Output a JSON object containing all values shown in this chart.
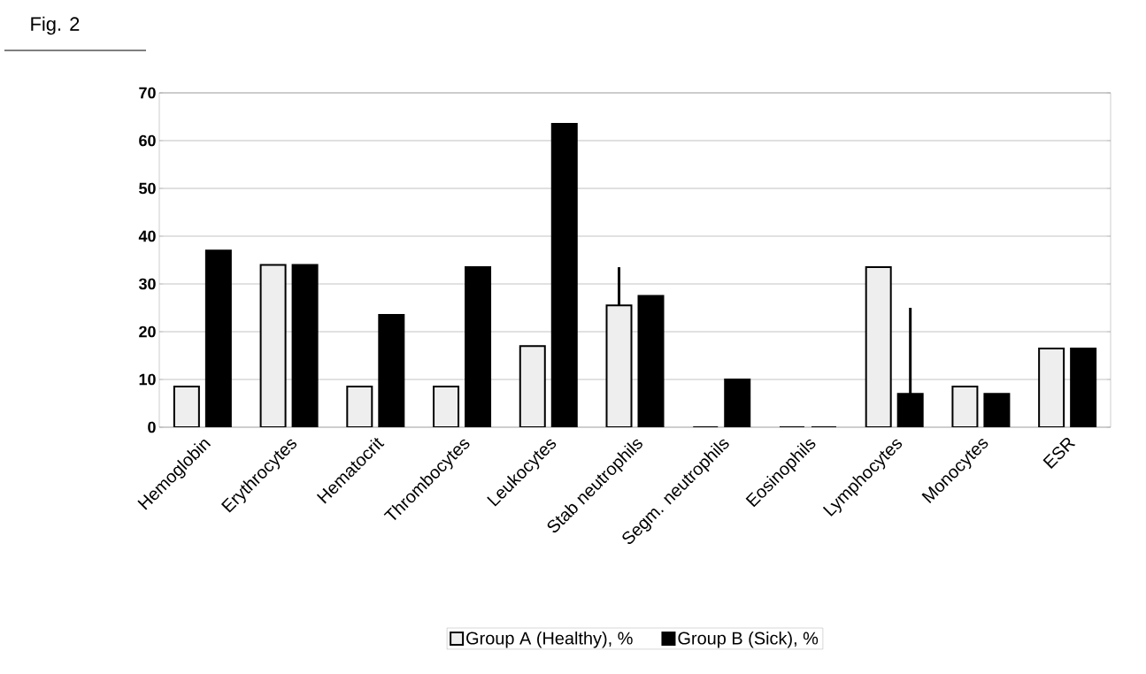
{
  "chart_data": {
    "type": "bar",
    "title": "Fig. 2",
    "categories": [
      "Hemoglobin",
      "Erythrocytes",
      "Hematocrit",
      "Thrombocytes",
      "Leukocytes",
      "Stab neutrophils",
      "Segm. neutrophils",
      "Eosinophils",
      "Lymphocytes",
      "Monocytes",
      "ESR"
    ],
    "series": [
      {
        "name": "Group A (Healthy), %",
        "color": "#eeeeee",
        "values": [
          8.5,
          34,
          8.5,
          8.5,
          17,
          25.5,
          0,
          0,
          33.5,
          8.5,
          16.5
        ],
        "errors": [
          null,
          null,
          null,
          null,
          null,
          [
            25.5,
            33.5
          ],
          null,
          null,
          null,
          null,
          null
        ]
      },
      {
        "name": "Group B (Sick), %",
        "color": "#000000",
        "values": [
          37,
          34,
          23.5,
          33.5,
          63.5,
          27.5,
          10,
          0,
          7,
          7,
          16.5
        ],
        "errors": [
          null,
          null,
          null,
          null,
          null,
          null,
          null,
          null,
          [
            7,
            25
          ],
          null,
          null
        ]
      }
    ],
    "ylim": [
      0,
      70
    ],
    "yticks": [
      0,
      10,
      20,
      30,
      40,
      50,
      60,
      70
    ],
    "grid": "y",
    "legend": "bottom"
  }
}
